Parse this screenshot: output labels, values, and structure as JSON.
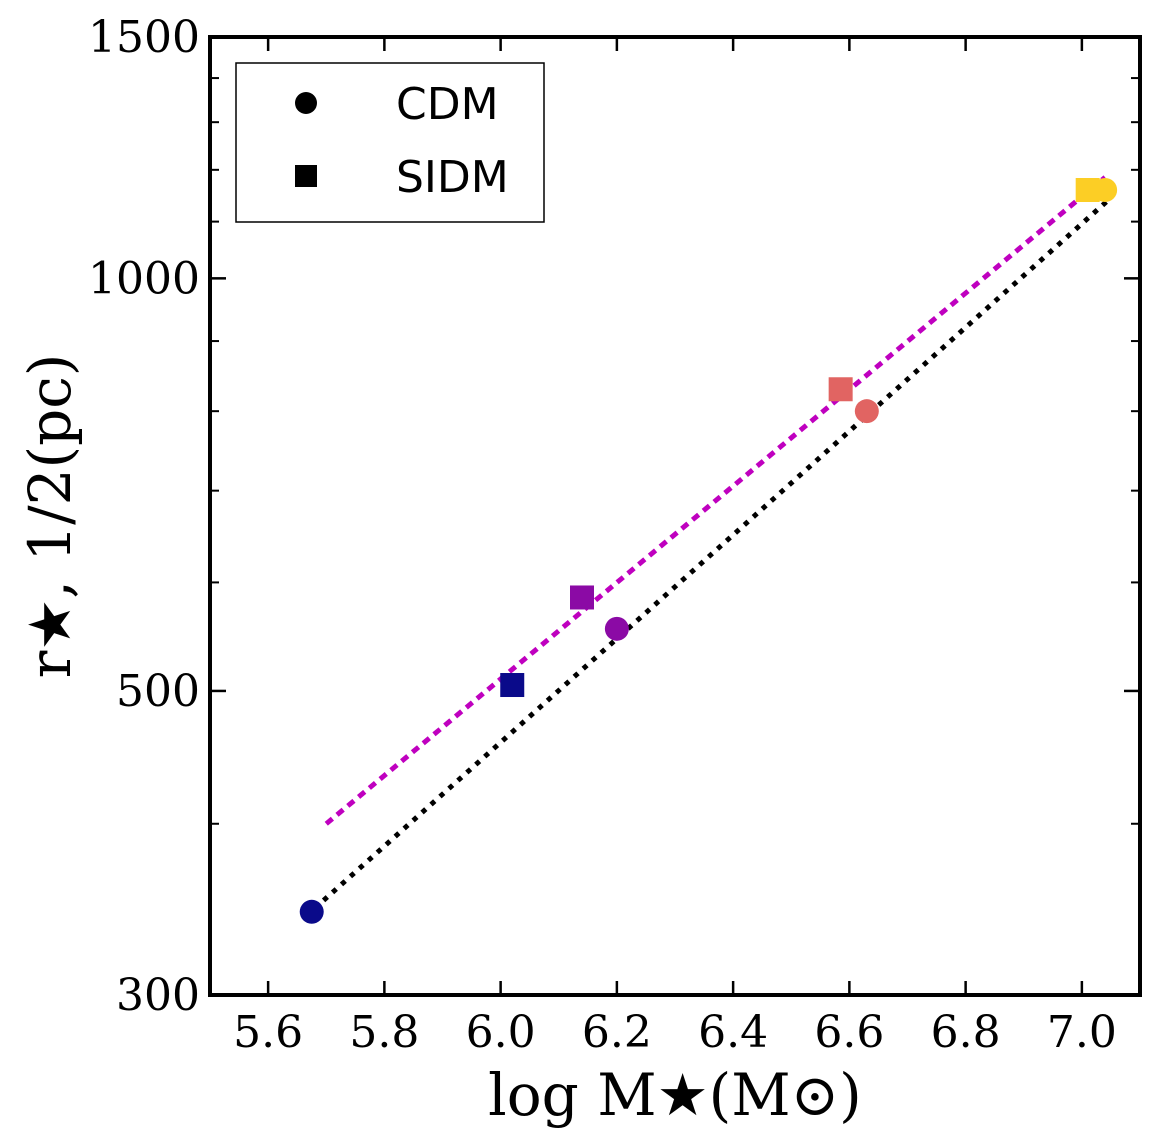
{
  "chart_data": {
    "type": "scatter",
    "title": "",
    "xlabel": "log M★(M⊙)",
    "ylabel": "r★, 1/2(pc)",
    "x_scale": "linear",
    "y_scale": "log",
    "xlim": [
      5.5,
      7.1
    ],
    "ylim": [
      300,
      1500
    ],
    "x_ticks": [
      5.6,
      5.8,
      6.0,
      6.2,
      6.4,
      6.6,
      6.8,
      7.0
    ],
    "x_tick_labels": [
      "5.6",
      "5.8",
      "6.0",
      "6.2",
      "6.4",
      "6.6",
      "6.8",
      "7.0"
    ],
    "y_ticks": [
      300,
      500,
      1000,
      1500
    ],
    "y_tick_labels": [
      "300",
      "500",
      "1000",
      "1500"
    ],
    "y_minor_ticks": [
      400,
      600,
      700,
      800,
      900,
      1100,
      1200,
      1300,
      1400
    ],
    "legend": {
      "position": "top-left",
      "entries": [
        {
          "label": "CDM",
          "marker": "circle"
        },
        {
          "label": "SIDM",
          "marker": "square"
        }
      ]
    },
    "series": [
      {
        "name": "CDM",
        "marker": "circle",
        "points": [
          {
            "x": 5.675,
            "y": 345,
            "color": "#0a0a8a"
          },
          {
            "x": 6.2,
            "y": 555,
            "color": "#8b0aa5"
          },
          {
            "x": 6.63,
            "y": 800,
            "color": "#e16462"
          },
          {
            "x": 7.04,
            "y": 1160,
            "color": "#fcce25"
          }
        ]
      },
      {
        "name": "SIDM",
        "marker": "square",
        "points": [
          {
            "x": 6.02,
            "y": 505,
            "color": "#0a0a8a"
          },
          {
            "x": 6.14,
            "y": 585,
            "color": "#8b0aa5"
          },
          {
            "x": 6.585,
            "y": 830,
            "color": "#e16462"
          },
          {
            "x": 7.01,
            "y": 1160,
            "color": "#fcce25"
          }
        ]
      }
    ],
    "fit_lines": [
      {
        "name": "CDM fit",
        "color": "#000000",
        "style": "dotted",
        "x": [
          5.68,
          7.05
        ],
        "y": [
          347,
          1145
        ]
      },
      {
        "name": "SIDM fit",
        "color": "#bf00bf",
        "style": "dashed",
        "x": [
          5.7,
          7.04
        ],
        "y": [
          400,
          1185
        ]
      }
    ]
  }
}
